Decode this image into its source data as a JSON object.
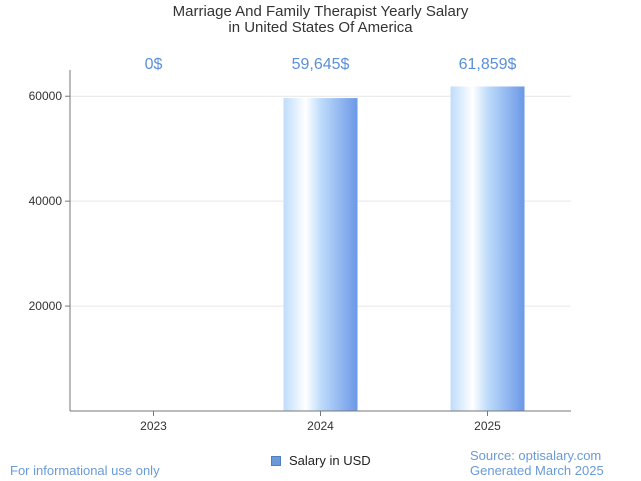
{
  "title": {
    "line1": "Marriage And Family Therapist Yearly Salary",
    "line2": "in United States Of America"
  },
  "legend": {
    "label": "Salary in USD",
    "color": "#6a9ad8"
  },
  "footer": {
    "left": "For informational use only",
    "source": "Source: optisalary.com",
    "generated": "Generated March 2025"
  },
  "colors": {
    "label": "#5b8fd9",
    "bar_edge": "#6b98e6",
    "bar_light": "#ffffff",
    "bar_mid": "#bfdcfb",
    "axis": "#777777",
    "grid": "#e6e6e6"
  },
  "chart_data": {
    "type": "bar",
    "categories": [
      "2023",
      "2024",
      "2025"
    ],
    "values": [
      0,
      59645,
      61859
    ],
    "data_labels": [
      "0$",
      "59,645$",
      "61,859$"
    ],
    "series": [
      {
        "name": "Salary in USD",
        "values": [
          0,
          59645,
          61859
        ]
      }
    ],
    "y_ticks": [
      20000,
      40000,
      60000
    ],
    "ylim": [
      0,
      65000
    ],
    "grid": true,
    "title": "Marriage And Family Therapist Yearly Salary in United States Of America",
    "xlabel": "",
    "ylabel": "",
    "legend_position": "bottom-center"
  }
}
